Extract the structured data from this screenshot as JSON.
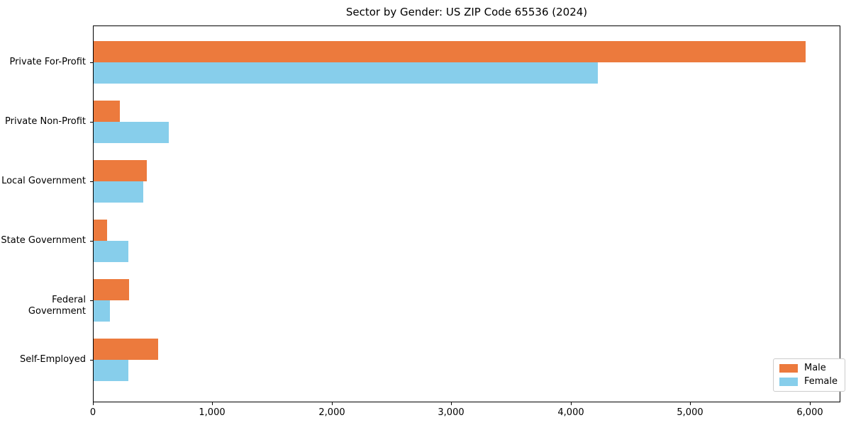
{
  "chart_data": {
    "type": "bar",
    "orientation": "horizontal",
    "title": "Sector by Gender: US ZIP Code 65536 (2024)",
    "categories": [
      "Private For-Profit",
      "Private Non-Profit",
      "Local Government",
      "State Government",
      "Federal Government",
      "Self-Employed"
    ],
    "series": [
      {
        "name": "Male",
        "color": "#ec7a3d",
        "values": [
          5960,
          220,
          445,
          112,
          298,
          540
        ]
      },
      {
        "name": "Female",
        "color": "#87ceeb",
        "values": [
          4220,
          630,
          417,
          290,
          138,
          290
        ]
      }
    ],
    "xlabel": "",
    "ylabel": "",
    "xlim": [
      0,
      6256
    ],
    "x_ticks": [
      "0",
      "1,000",
      "2,000",
      "3,000",
      "4,000",
      "5,000",
      "6,000"
    ],
    "x_tick_values": [
      0,
      1000,
      2000,
      3000,
      4000,
      5000,
      6000
    ],
    "grid": false,
    "legend": {
      "position": "lower right",
      "entries": [
        "Male",
        "Female"
      ]
    },
    "colors": {
      "spine": "#000000",
      "legend_border": "#cccccc",
      "background": "#ffffff"
    }
  }
}
